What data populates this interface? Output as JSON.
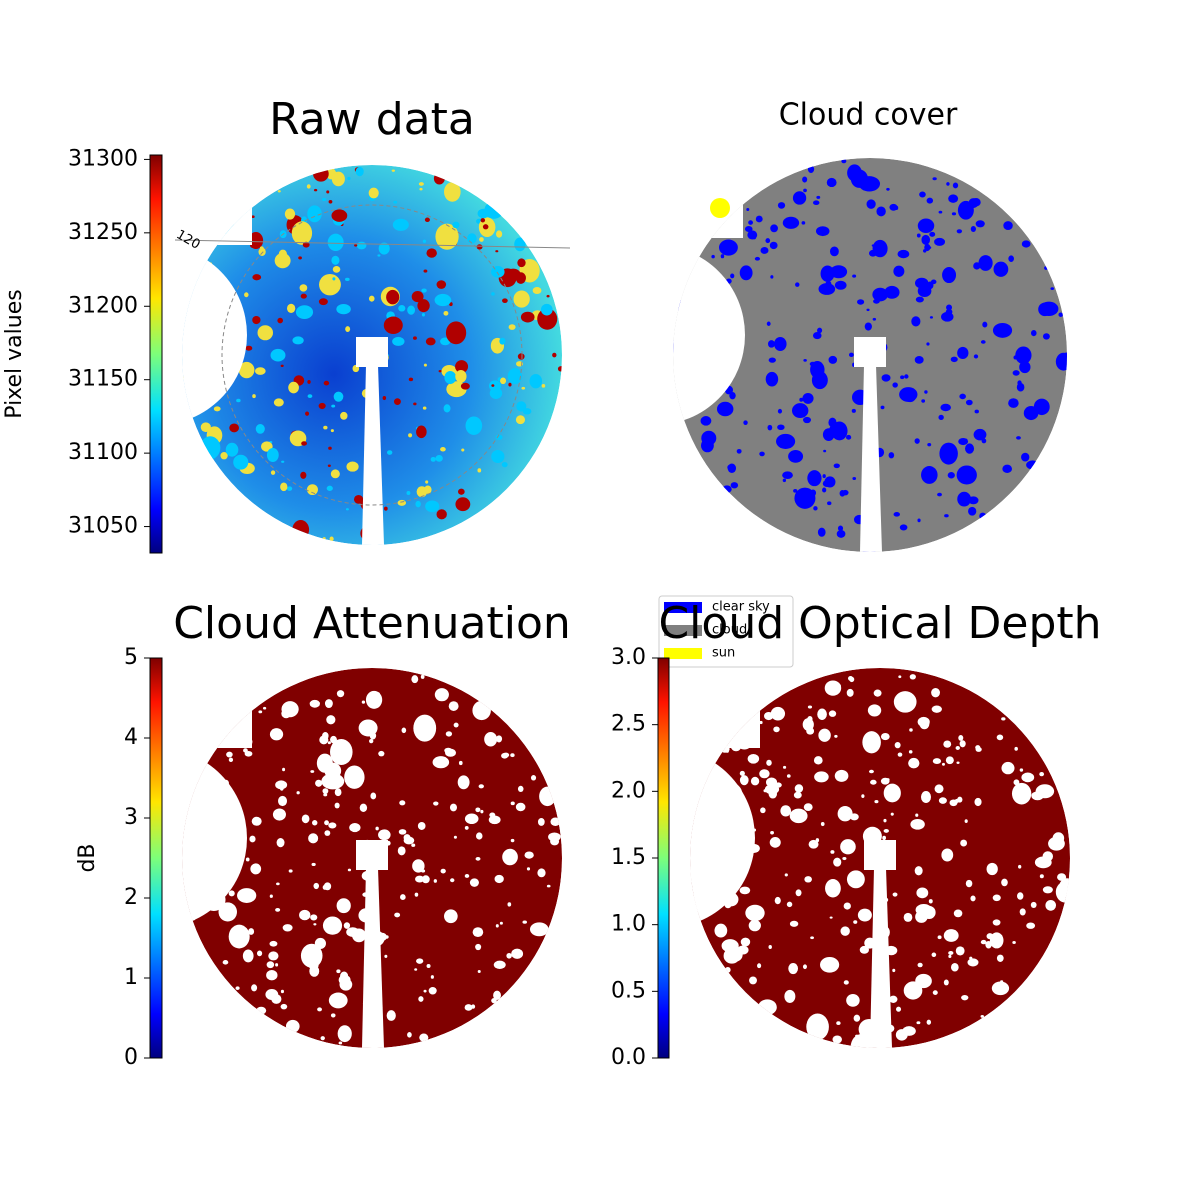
{
  "chart_data": [
    {
      "type": "image",
      "title": "Raw data",
      "annotation": "120",
      "colorbar": {
        "label": "Pixel values",
        "ylim": [
          31032,
          31303
        ],
        "yticks": [
          31050,
          31100,
          31150,
          31200,
          31250,
          31300
        ]
      }
    },
    {
      "type": "image",
      "title": "Cloud cover",
      "legend": {
        "series": [
          {
            "name": "clear sky",
            "color": "#0000ff"
          },
          {
            "name": "cloud",
            "color": "#808080"
          },
          {
            "name": "sun",
            "color": "#ffff00"
          }
        ]
      }
    },
    {
      "type": "image",
      "title": "Cloud Attenuation",
      "colorbar": {
        "label": "dB",
        "ylim": [
          0,
          5
        ],
        "yticks": [
          0,
          1,
          2,
          3,
          4,
          5
        ]
      }
    },
    {
      "type": "image",
      "title": "Cloud Optical Depth",
      "colorbar": {
        "ylim": [
          0,
          3
        ],
        "yticks": [
          {
            "value": 0,
            "label": "0.0"
          },
          {
            "value": 0.5,
            "label": "0.5"
          },
          {
            "value": 1,
            "label": "1.0"
          },
          {
            "value": 1.5,
            "label": "1.5"
          },
          {
            "value": 2,
            "label": "2.0"
          },
          {
            "value": 2.5,
            "label": "2.5"
          },
          {
            "value": 3,
            "label": "3.0"
          }
        ]
      }
    }
  ]
}
